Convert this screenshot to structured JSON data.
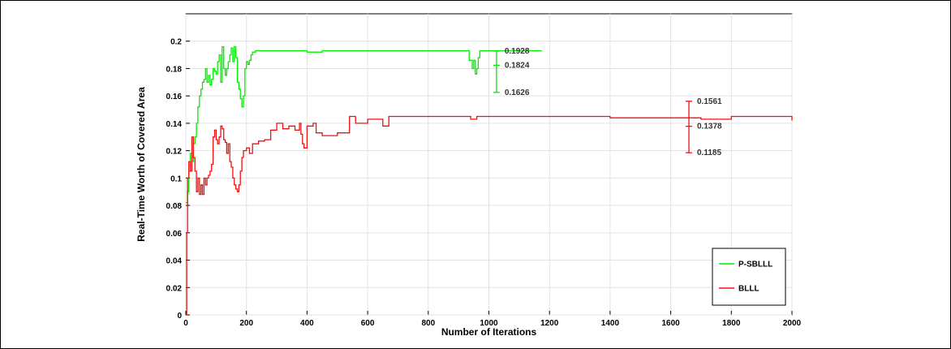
{
  "chart_data": {
    "type": "line",
    "xlabel": "Number of Iterations",
    "ylabel": "Real-Time Worth of Covered Area",
    "xlim": [
      0,
      2000
    ],
    "ylim": [
      0,
      0.22
    ],
    "xticks": [
      0,
      200,
      400,
      600,
      800,
      1000,
      1200,
      1400,
      1600,
      1800,
      2000
    ],
    "yticks": [
      0,
      0.02,
      0.04,
      0.06,
      0.08,
      0.1,
      0.12,
      0.14,
      0.16,
      0.18,
      0.2
    ],
    "xtick_labels": [
      "0",
      "200",
      "400",
      "600",
      "800",
      "1000",
      "1200",
      "1400",
      "1600",
      "1800",
      "2000"
    ],
    "ytick_labels": [
      "0",
      "0.02",
      "0.04",
      "0.06",
      "0.08",
      "0.1",
      "0.12",
      "0.14",
      "0.16",
      "0.18",
      "0.2"
    ],
    "grid": true,
    "legend_position": "bottom-right",
    "series": [
      {
        "name": "P-SBLLL",
        "color": "#00ee00",
        "x": [
          0,
          5,
          10,
          15,
          20,
          25,
          30,
          35,
          40,
          45,
          50,
          55,
          60,
          65,
          70,
          75,
          80,
          85,
          90,
          95,
          100,
          105,
          110,
          115,
          120,
          125,
          130,
          135,
          140,
          145,
          150,
          155,
          160,
          165,
          170,
          175,
          180,
          185,
          190,
          195,
          200,
          205,
          210,
          215,
          220,
          230,
          250,
          300,
          350,
          400,
          450,
          500,
          600,
          700,
          800,
          900,
          925,
          935,
          945,
          950,
          955,
          960,
          965,
          970,
          980,
          1000,
          1100,
          1175
        ],
        "y": [
          0.082,
          0.09,
          0.105,
          0.118,
          0.112,
          0.125,
          0.13,
          0.14,
          0.152,
          0.16,
          0.165,
          0.17,
          0.172,
          0.18,
          0.17,
          0.175,
          0.168,
          0.172,
          0.18,
          0.178,
          0.176,
          0.185,
          0.19,
          0.17,
          0.196,
          0.18,
          0.175,
          0.18,
          0.185,
          0.19,
          0.195,
          0.185,
          0.196,
          0.188,
          0.17,
          0.165,
          0.158,
          0.152,
          0.16,
          0.18,
          0.185,
          0.183,
          0.186,
          0.19,
          0.192,
          0.193,
          0.193,
          0.193,
          0.193,
          0.192,
          0.193,
          0.193,
          0.193,
          0.193,
          0.193,
          0.193,
          0.193,
          0.186,
          0.18,
          0.186,
          0.176,
          0.18,
          0.188,
          0.193,
          0.193,
          0.193,
          0.193,
          0.193
        ]
      },
      {
        "name": "BLLL",
        "color": "#ee1111",
        "x": [
          0,
          3,
          6,
          10,
          15,
          20,
          25,
          30,
          35,
          40,
          45,
          50,
          55,
          60,
          65,
          70,
          75,
          80,
          85,
          90,
          95,
          100,
          105,
          110,
          115,
          120,
          125,
          130,
          135,
          140,
          145,
          150,
          155,
          160,
          165,
          170,
          175,
          180,
          185,
          190,
          200,
          210,
          220,
          240,
          260,
          280,
          300,
          320,
          340,
          360,
          375,
          380,
          385,
          390,
          400,
          420,
          430,
          450,
          500,
          540,
          560,
          600,
          650,
          670,
          700,
          800,
          900,
          940,
          960,
          1000,
          1100,
          1200,
          1300,
          1400,
          1500,
          1600,
          1700,
          1800,
          1900,
          1980,
          2000
        ],
        "y": [
          0.0,
          0.06,
          0.1,
          0.112,
          0.105,
          0.13,
          0.115,
          0.105,
          0.09,
          0.1,
          0.088,
          0.095,
          0.088,
          0.1,
          0.095,
          0.1,
          0.102,
          0.105,
          0.11,
          0.13,
          0.135,
          0.128,
          0.125,
          0.13,
          0.138,
          0.136,
          0.128,
          0.126,
          0.118,
          0.125,
          0.112,
          0.108,
          0.1,
          0.095,
          0.092,
          0.09,
          0.095,
          0.105,
          0.115,
          0.12,
          0.122,
          0.118,
          0.125,
          0.127,
          0.128,
          0.135,
          0.14,
          0.136,
          0.138,
          0.135,
          0.14,
          0.132,
          0.125,
          0.122,
          0.138,
          0.14,
          0.133,
          0.131,
          0.133,
          0.145,
          0.14,
          0.143,
          0.138,
          0.145,
          0.145,
          0.145,
          0.145,
          0.143,
          0.145,
          0.145,
          0.145,
          0.145,
          0.145,
          0.144,
          0.144,
          0.144,
          0.143,
          0.145,
          0.145,
          0.145,
          0.142
        ]
      }
    ],
    "error_bars": [
      {
        "series": "P-SBLLL",
        "x": 1025,
        "low": 0.1626,
        "mid": 0.1824,
        "high": 0.1928,
        "labels": [
          "0.1928",
          "0.1824",
          "0.1626"
        ],
        "color": "#00ee00"
      },
      {
        "series": "BLLL",
        "x": 1660,
        "low": 0.1185,
        "mid": 0.1378,
        "high": 0.1561,
        "labels": [
          "0.1561",
          "0.1378",
          "0.1185"
        ],
        "color": "#ee1111"
      }
    ]
  }
}
